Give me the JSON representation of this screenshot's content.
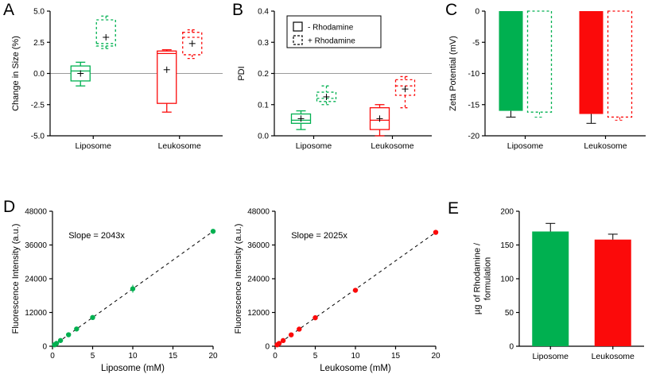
{
  "figure": {
    "background": "#ffffff",
    "colors": {
      "green": "#00b050",
      "red": "#fb0a0a",
      "black": "#000000",
      "refline_gray": "#9a9a9a"
    }
  },
  "panels": {
    "a": {
      "label": "A"
    },
    "b": {
      "label": "B"
    },
    "c": {
      "label": "C"
    },
    "d": {
      "label": "D"
    },
    "e": {
      "label": "E"
    }
  },
  "chart_data": [
    {
      "panel": "A",
      "type": "box",
      "ylabel": "Change in Size (%)",
      "ylim": [
        -5.0,
        5.0
      ],
      "yticks": [
        5.0,
        2.5,
        0.0,
        -2.5,
        -5.0
      ],
      "ytick_labels": [
        "5.0",
        "2.5",
        "0.0",
        "-2.5",
        "-5.0"
      ],
      "refline": 0.0,
      "categories": [
        "Liposome",
        "Leukosome"
      ],
      "boxes": [
        {
          "category": "Liposome",
          "series": "- Rhodamine",
          "color": "green",
          "dash": false,
          "low": -1.0,
          "q1": -0.6,
          "median": 0.2,
          "q3": 0.6,
          "high": 0.9,
          "mean": 0.0
        },
        {
          "category": "Liposome",
          "series": "+ Rhodamine",
          "color": "green",
          "dash": true,
          "low": 2.0,
          "q1": 2.2,
          "median": 2.4,
          "q3": 4.3,
          "high": 4.6,
          "mean": 2.9
        },
        {
          "category": "Leukosome",
          "series": "- Rhodamine",
          "color": "red",
          "dash": false,
          "low": -3.1,
          "q1": -2.4,
          "median": 1.6,
          "q3": 1.8,
          "high": 1.9,
          "mean": 0.3
        },
        {
          "category": "Leukosome",
          "series": "+ Rhodamine",
          "color": "red",
          "dash": true,
          "low": 1.2,
          "q1": 1.5,
          "median": 2.9,
          "q3": 3.3,
          "high": 3.5,
          "mean": 2.4
        }
      ]
    },
    {
      "panel": "B",
      "type": "box",
      "ylabel": "PDI",
      "ylim": [
        0.0,
        0.4
      ],
      "yticks": [
        0.0,
        0.1,
        0.2,
        0.3,
        0.4
      ],
      "ytick_labels": [
        "0.0",
        "0.1",
        "0.2",
        "0.3",
        "0.4"
      ],
      "refline": 0.2,
      "legend": [
        {
          "label": "- Rhodamine",
          "dash": false
        },
        {
          "label": "+ Rhodamine",
          "dash": true
        }
      ],
      "categories": [
        "Liposome",
        "Leukosome"
      ],
      "boxes": [
        {
          "category": "Liposome",
          "series": "- Rhodamine",
          "color": "green",
          "dash": false,
          "low": 0.02,
          "q1": 0.04,
          "median": 0.05,
          "q3": 0.07,
          "high": 0.08,
          "mean": 0.055
        },
        {
          "category": "Liposome",
          "series": "+ Rhodamine",
          "color": "green",
          "dash": true,
          "low": 0.1,
          "q1": 0.11,
          "median": 0.12,
          "q3": 0.14,
          "high": 0.16,
          "mean": 0.125
        },
        {
          "category": "Leukosome",
          "series": "- Rhodamine",
          "color": "red",
          "dash": false,
          "low": 0.0,
          "q1": 0.02,
          "median": 0.05,
          "q3": 0.09,
          "high": 0.1,
          "mean": 0.055
        },
        {
          "category": "Leukosome",
          "series": "+ Rhodamine",
          "color": "red",
          "dash": true,
          "low": 0.09,
          "q1": 0.13,
          "median": 0.16,
          "q3": 0.18,
          "high": 0.19,
          "mean": 0.15
        }
      ]
    },
    {
      "panel": "C",
      "type": "bar",
      "ylabel": "Zeta Potential (mV)",
      "ylim": [
        -20,
        0
      ],
      "yticks": [
        0,
        -5,
        -10,
        -15,
        -20
      ],
      "ytick_labels": [
        "0",
        "-5",
        "-10",
        "-15",
        "-20"
      ],
      "categories": [
        "Liposome",
        "Leukosome"
      ],
      "bars": [
        {
          "category": "Liposome",
          "series": "- Rhodamine",
          "color": "green",
          "dash": false,
          "value": -16.0,
          "error": 1.0
        },
        {
          "category": "Liposome",
          "series": "+ Rhodamine",
          "color": "green",
          "dash": true,
          "value": -16.2,
          "error": 0.8
        },
        {
          "category": "Leukosome",
          "series": "- Rhodamine",
          "color": "red",
          "dash": false,
          "value": -16.5,
          "error": 1.5
        },
        {
          "category": "Leukosome",
          "series": "+ Rhodamine",
          "color": "red",
          "dash": true,
          "value": -17.0,
          "error": 0.5
        }
      ]
    },
    {
      "panel": "D",
      "type": "scatter",
      "annotation": "Slope = 2043x",
      "xlabel": "Liposome (mM)",
      "ylabel": "Fluorescence Intensity (a.u.)",
      "xlim": [
        0,
        20
      ],
      "ylim": [
        0,
        48000
      ],
      "xticks": [
        0,
        5,
        10,
        15,
        20
      ],
      "yticks": [
        0,
        12000,
        24000,
        36000,
        48000
      ],
      "ytick_labels": [
        "0",
        "12000",
        "24000",
        "36000",
        "48000"
      ],
      "slope": 2043,
      "color": "green",
      "line_dash": true,
      "x": [
        0.25,
        0.5,
        1,
        2,
        3,
        5,
        10,
        20
      ],
      "y": [
        510,
        1020,
        2040,
        4090,
        6130,
        10220,
        20430,
        40860
      ],
      "yerr": [
        100,
        100,
        150,
        200,
        250,
        400,
        1400,
        700
      ]
    },
    {
      "panel": "D",
      "type": "scatter",
      "annotation": "Slope = 2025x",
      "xlabel": "Leukosome (mM)",
      "ylabel": "Fluorescence Intensity (a.u.)",
      "xlim": [
        0,
        20
      ],
      "ylim": [
        0,
        48000
      ],
      "xticks": [
        0,
        5,
        10,
        15,
        20
      ],
      "yticks": [
        0,
        12000,
        24000,
        36000,
        48000
      ],
      "ytick_labels": [
        "0",
        "12000",
        "24000",
        "36000",
        "48000"
      ],
      "slope": 2025,
      "color": "red",
      "line_dash": true,
      "x": [
        0.25,
        0.5,
        1,
        2,
        3,
        5,
        10,
        20
      ],
      "y": [
        505,
        1010,
        2025,
        4050,
        6080,
        10130,
        19900,
        40500
      ],
      "yerr": [
        100,
        100,
        150,
        200,
        250,
        350,
        600,
        600
      ]
    },
    {
      "panel": "E",
      "type": "bar",
      "ylabel": "µg of Rhodamine /\nformulation",
      "ylim": [
        0,
        200
      ],
      "yticks": [
        0,
        50,
        100,
        150,
        200
      ],
      "ytick_labels": [
        "0",
        "50",
        "100",
        "150",
        "200"
      ],
      "categories": [
        "Liposome",
        "Leukosome"
      ],
      "bars": [
        {
          "category": "Liposome",
          "series": "",
          "color": "green",
          "dash": false,
          "value": 170,
          "error": 12
        },
        {
          "category": "Leukosome",
          "series": "",
          "color": "red",
          "dash": false,
          "value": 158,
          "error": 8
        }
      ]
    }
  ]
}
